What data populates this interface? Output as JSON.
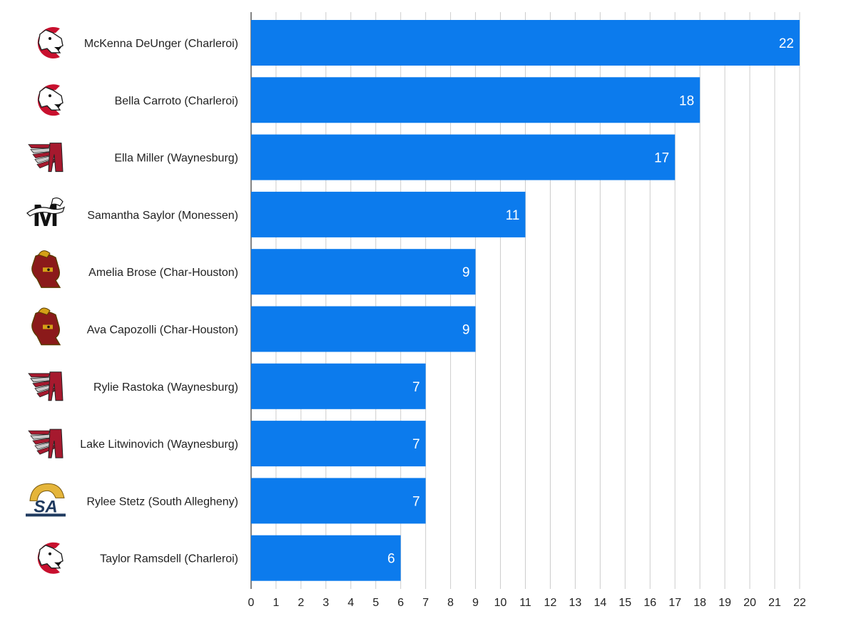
{
  "chart_data": {
    "type": "bar",
    "orientation": "horizontal",
    "title": "",
    "xlabel": "",
    "ylabel": "",
    "xlim": [
      0,
      22
    ],
    "x_ticks": [
      0,
      1,
      2,
      3,
      4,
      5,
      6,
      7,
      8,
      9,
      10,
      11,
      12,
      13,
      14,
      15,
      16,
      17,
      18,
      19,
      20,
      21,
      22
    ],
    "grid": "vertical",
    "bar_color": "#0c7bed",
    "categories": [
      "McKenna DeUnger (Charleroi)",
      "Bella Carroto (Charleroi)",
      "Ella Miller (Waynesburg)",
      "Samantha Saylor (Monessen)",
      "Amelia Brose (Char-Houston)",
      "Ava Capozolli (Char-Houston)",
      "Rylie Rastoka (Waynesburg)",
      "Lake Litwinovich (Waynesburg)",
      "Rylee Stetz (South Allegheny)",
      "Taylor Ramsdell (Charleroi)"
    ],
    "values": [
      22,
      18,
      17,
      11,
      9,
      9,
      7,
      7,
      7,
      6
    ],
    "logos": [
      "cougar-icon",
      "cougar-icon",
      "raider-icon",
      "panther-m-icon",
      "gladiator-icon",
      "gladiator-icon",
      "raider-icon",
      "raider-icon",
      "sa-icon",
      "cougar-icon"
    ],
    "logo_colors": {
      "charleroi": "#c8102e",
      "waynesburg": "#a6192e",
      "monessen": "#111111",
      "char_houston": "#8b1a1a",
      "south_allegheny_gold": "#e5b53a",
      "south_allegheny_navy": "#1f3a5f"
    }
  }
}
